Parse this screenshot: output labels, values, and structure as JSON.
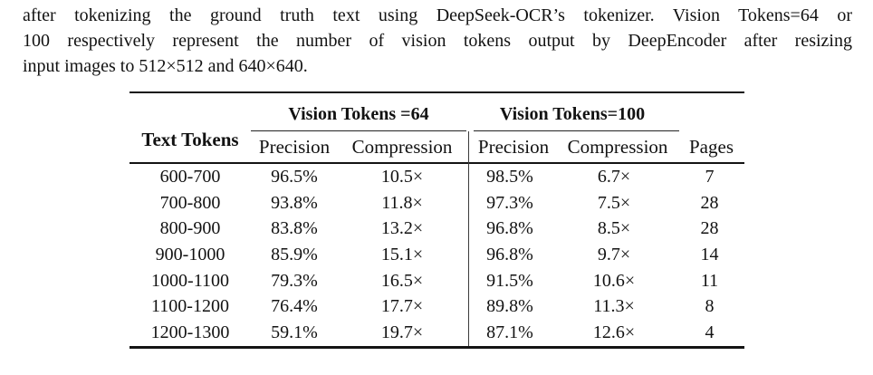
{
  "paragraph": {
    "lines": [
      "after tokenizing the ground truth text using DeepSeek-OCR’s tokenizer. Vision Tokens=64 or",
      "100 respectively represent the number of vision tokens output by DeepEncoder after resizing",
      "input images to 512×512 and 640×640."
    ]
  },
  "table": {
    "row_header_label": "Text Tokens",
    "groups": [
      {
        "label": "Vision Tokens =64",
        "columns": [
          "Precision",
          "Compression"
        ]
      },
      {
        "label": "Vision Tokens=100",
        "columns": [
          "Precision",
          "Compression"
        ]
      }
    ],
    "pages_label": "Pages",
    "rows": [
      [
        "600-700",
        "96.5%",
        "10.5×",
        "98.5%",
        "6.7×",
        "7"
      ],
      [
        "700-800",
        "93.8%",
        "11.8×",
        "97.3%",
        "7.5×",
        "28"
      ],
      [
        "800-900",
        "83.8%",
        "13.2×",
        "96.8%",
        "8.5×",
        "28"
      ],
      [
        "900-1000",
        "85.9%",
        "15.1×",
        "96.8%",
        "9.7×",
        "14"
      ],
      [
        "1000-1100",
        "79.3%",
        "16.5×",
        "91.5%",
        "10.6×",
        "11"
      ],
      [
        "1100-1200",
        "76.4%",
        "17.7×",
        "89.8%",
        "11.3×",
        "8"
      ],
      [
        "1200-1300",
        "59.1%",
        "19.7×",
        "87.1%",
        "12.6×",
        "4"
      ]
    ]
  },
  "colors": {
    "text": "#121212",
    "rule": "#141414",
    "background": "#ffffff"
  }
}
